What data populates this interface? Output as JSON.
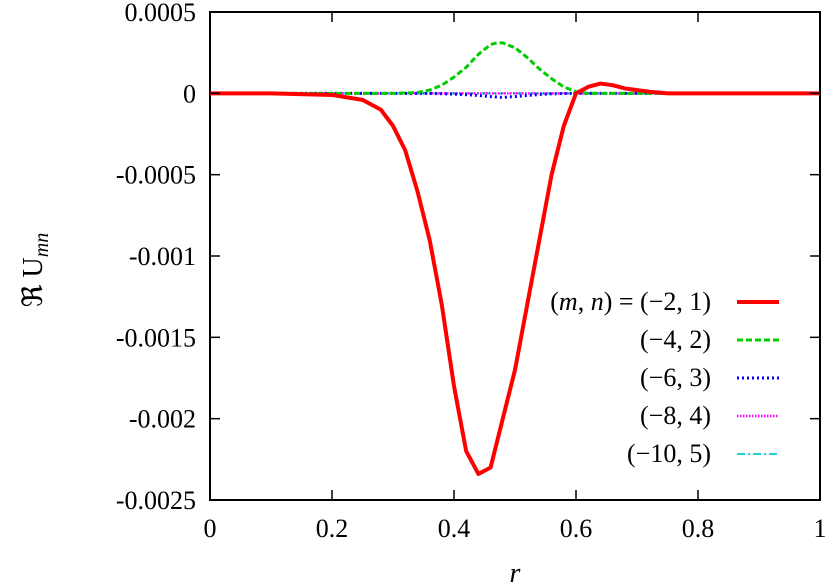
{
  "chart_data": {
    "type": "line",
    "xlabel": "r",
    "ylabel": "ℜ U",
    "ylabel_sub": "mn",
    "xlim": [
      0,
      1
    ],
    "ylim": [
      -0.0025,
      0.0005
    ],
    "xticks": [
      "0",
      "0.2",
      "0.4",
      "0.6",
      "0.8",
      "1"
    ],
    "yticks": [
      "0.0005",
      "0",
      "-0.0005",
      "-0.001",
      "-0.0015",
      "-0.002",
      "-0.0025"
    ],
    "legend_position": "bottom-right",
    "legend_prefix_parts": [
      "(",
      "m",
      ", ",
      "n",
      ") = "
    ],
    "grid": false,
    "series": [
      {
        "name": "(−2, 1)",
        "color": "#ff0000",
        "style": "solid",
        "x": [
          0,
          0.1,
          0.2,
          0.25,
          0.28,
          0.3,
          0.32,
          0.34,
          0.36,
          0.38,
          0.4,
          0.42,
          0.44,
          0.46,
          0.48,
          0.5,
          0.52,
          0.54,
          0.56,
          0.58,
          0.6,
          0.62,
          0.64,
          0.66,
          0.68,
          0.7,
          0.72,
          0.75,
          0.8,
          0.9,
          1
        ],
        "y": [
          0,
          0,
          -1e-05,
          -4e-05,
          -0.0001,
          -0.0002,
          -0.00035,
          -0.0006,
          -0.0009,
          -0.0013,
          -0.0018,
          -0.0022,
          -0.00234,
          -0.0023,
          -0.002,
          -0.0017,
          -0.0013,
          -0.0009,
          -0.0005,
          -0.0002,
          0,
          4e-05,
          6e-05,
          5e-05,
          3e-05,
          2e-05,
          1e-05,
          0,
          0,
          0,
          0
        ]
      },
      {
        "name": "(−4, 2)",
        "color": "#00cc00",
        "style": "dashed",
        "x": [
          0,
          0.3,
          0.34,
          0.36,
          0.38,
          0.4,
          0.42,
          0.44,
          0.46,
          0.47,
          0.48,
          0.5,
          0.52,
          0.54,
          0.56,
          0.58,
          0.6,
          0.62,
          0.65,
          0.7,
          1
        ],
        "y": [
          0,
          0,
          5e-06,
          2e-05,
          5e-05,
          0.0001,
          0.00016,
          0.00024,
          0.0003,
          0.00031,
          0.00031,
          0.00028,
          0.00022,
          0.00015,
          9e-05,
          4e-05,
          1e-05,
          0,
          0,
          0,
          0
        ]
      },
      {
        "name": "(−6, 3)",
        "color": "#0000ff",
        "style": "dotted",
        "x": [
          0,
          0.36,
          0.4,
          0.43,
          0.46,
          0.48,
          0.5,
          0.53,
          0.56,
          0.6,
          1
        ],
        "y": [
          0,
          0,
          -5e-06,
          -1e-05,
          -2e-05,
          -2.5e-05,
          -2e-05,
          -1e-05,
          -3e-06,
          0,
          0
        ]
      },
      {
        "name": "(−8, 4)",
        "color": "#ff00ff",
        "style": "dense-dotted",
        "x": [
          0,
          1
        ],
        "y": [
          0,
          0
        ]
      },
      {
        "name": "(−10, 5)",
        "color": "#00cccc",
        "style": "dash-dot",
        "x": [
          0,
          1
        ],
        "y": [
          0,
          0
        ]
      }
    ]
  }
}
